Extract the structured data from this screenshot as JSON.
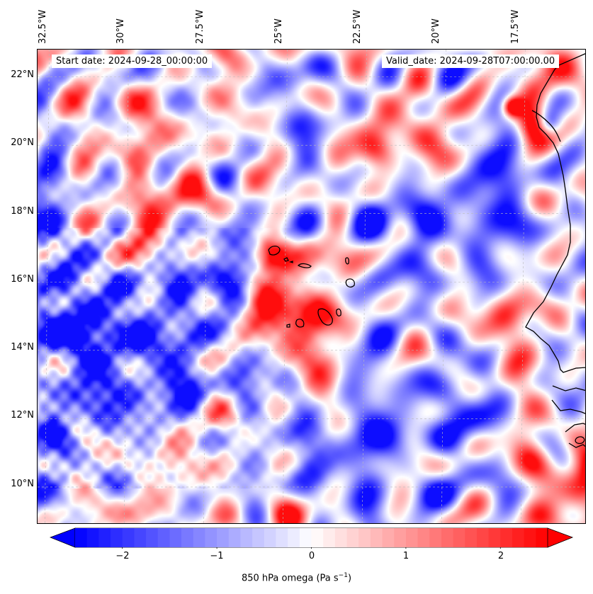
{
  "header": {
    "start_date": "Start date: 2024-09-28_00:00:00",
    "valid_date": "Valid_date: 2024-09-28T07:00:00.00"
  },
  "map": {
    "lon_labels": [
      "32.5°W",
      "30°W",
      "27.5°W",
      "25°W",
      "22.5°W",
      "20°W",
      "17.5°W"
    ],
    "lat_labels": [
      "22°N",
      "20°N",
      "18°N",
      "16°N",
      "14°N",
      "12°N",
      "10°N"
    ],
    "lon_values": [
      -32.5,
      -30,
      -27.5,
      -25,
      -22.5,
      -20,
      -17.5
    ],
    "lat_values": [
      22,
      20,
      18,
      16,
      14,
      12,
      10
    ],
    "extent": {
      "lon": [
        -32.8,
        -15.5
      ],
      "lat": [
        8.9,
        22.8
      ]
    },
    "gridlines": true,
    "colormap": "bwr",
    "colors": {
      "negative": "#0000ff",
      "zero": "#ffffff",
      "positive": "#ff0000",
      "coast": "#000000"
    }
  },
  "colorbar": {
    "label": "850 hPa omega (Pa s",
    "label_sup": "−1",
    "label_end": ")",
    "ticks": [
      "−2",
      "−1",
      "0",
      "1",
      "2"
    ],
    "tick_values": [
      -2,
      -1,
      0,
      1,
      2
    ],
    "range": [
      -2.5,
      2.5
    ],
    "extend": "both"
  }
}
